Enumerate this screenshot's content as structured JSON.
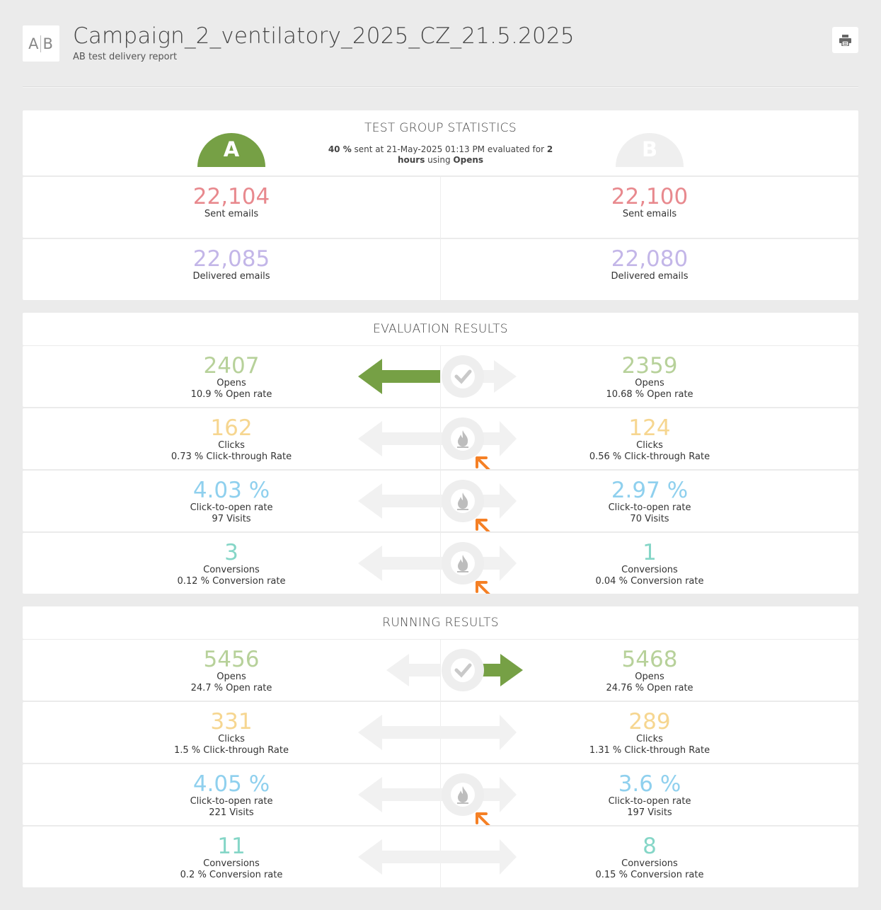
{
  "header": {
    "logo": "A|B",
    "logo_left": "A",
    "logo_right": "B",
    "title": "Campaign_2_ventilatory_2025_CZ_21.5.2025",
    "subtitle": "AB test delivery report",
    "print_icon": "printer-icon"
  },
  "test_group": {
    "title": "TEST GROUP STATISTICS",
    "summary": {
      "percent": "40 %",
      "sent_at": " sent at 21-May-2025 01:13 PM evaluated for ",
      "hours": "2",
      "hours_word": "hours",
      "using": " using ",
      "metric": "Opens"
    },
    "variant_a": {
      "letter": "A",
      "color": "#76a045"
    },
    "variant_b": {
      "letter": "B",
      "color": "#efefef"
    },
    "sent": {
      "a": "22,104",
      "b": "22,100",
      "label": "Sent emails"
    },
    "delivered": {
      "a": "22,085",
      "b": "22,080",
      "label": "Delivered emails"
    }
  },
  "evaluation": {
    "title": "EVALUATION RESULTS",
    "rows": [
      {
        "a_value": "2407",
        "b_value": "2359",
        "label": "Opens",
        "a_sub": "10.9 % Open rate",
        "b_sub": "10.68 % Open rate",
        "winner": "a",
        "icon": "checkmark-icon"
      },
      {
        "a_value": "162",
        "b_value": "124",
        "label": "Clicks",
        "a_sub": "0.73 % Click-through Rate",
        "b_sub": "0.56 % Click-through Rate",
        "winner": "none",
        "icon": "flame-icon"
      },
      {
        "a_value": "4.03 %",
        "b_value": "2.97 %",
        "label": "Click-to-open rate",
        "a_sub": "97 Visits",
        "b_sub": "70 Visits",
        "winner": "none",
        "icon": "flame-icon"
      },
      {
        "a_value": "3",
        "b_value": "1",
        "label": "Conversions",
        "a_sub": "0.12 % Conversion rate",
        "b_sub": "0.04 % Conversion rate",
        "winner": "none",
        "icon": "flame-icon"
      }
    ]
  },
  "running": {
    "title": "RUNNING RESULTS",
    "rows": [
      {
        "a_value": "5456",
        "b_value": "5468",
        "label": "Opens",
        "a_sub": "24.7 % Open rate",
        "b_sub": "24.76 % Open rate",
        "winner": "b",
        "icon": "checkmark-icon"
      },
      {
        "a_value": "331",
        "b_value": "289",
        "label": "Clicks",
        "a_sub": "1.5 % Click-through Rate",
        "b_sub": "1.31 % Click-through Rate",
        "winner": "none",
        "icon": "none"
      },
      {
        "a_value": "4.05 %",
        "b_value": "3.6 %",
        "label": "Click-to-open rate",
        "a_sub": "221 Visits",
        "b_sub": "197 Visits",
        "winner": "none",
        "icon": "flame-icon"
      },
      {
        "a_value": "11",
        "b_value": "8",
        "label": "Conversions",
        "a_sub": "0.2 % Conversion rate",
        "b_sub": "0.15 % Conversion rate",
        "winner": "none",
        "icon": "none"
      }
    ]
  },
  "colors": {
    "winner_arrow": "#76a045",
    "annotation_arrow": "#f58025",
    "inactive_arrow": "#f1f1f1"
  }
}
